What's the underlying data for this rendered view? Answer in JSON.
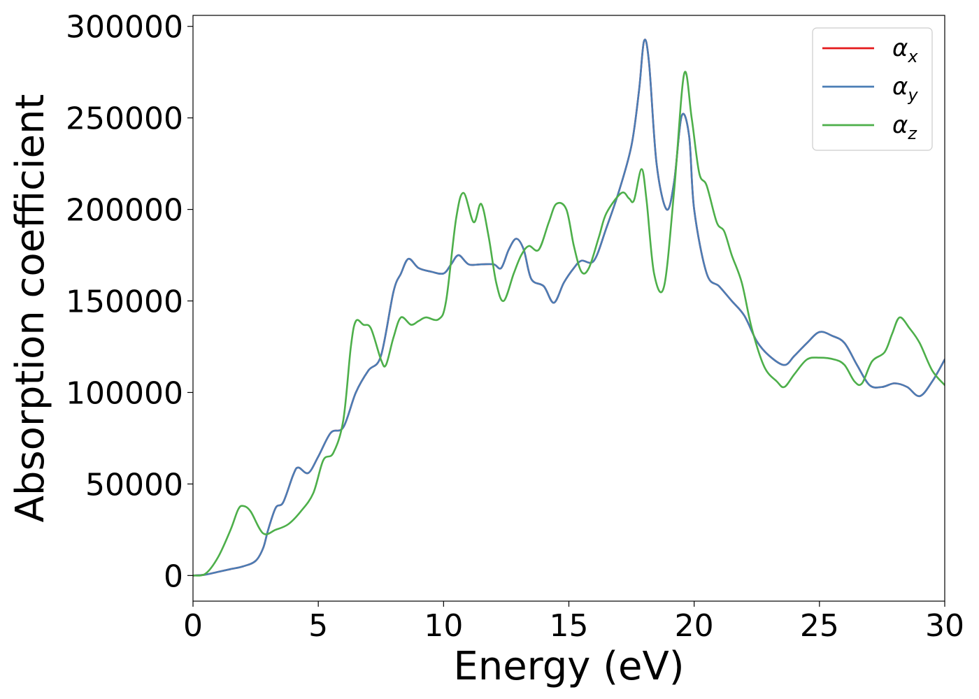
{
  "chart_data": {
    "type": "line",
    "title": "",
    "xlabel": "Energy (eV)",
    "ylabel": "Absorption coefficient",
    "xlim": [
      0,
      30
    ],
    "ylim": [
      -14000,
      306000
    ],
    "grid": false,
    "legend_position": "top-right",
    "xticks": [
      0,
      5,
      10,
      15,
      20,
      25,
      30
    ],
    "xtick_labels": [
      "0",
      "5",
      "10",
      "15",
      "20",
      "25",
      "30"
    ],
    "yticks": [
      0,
      50000,
      100000,
      150000,
      200000,
      250000,
      300000
    ],
    "ytick_labels": [
      "0",
      "50000",
      "100000",
      "150000",
      "200000",
      "250000",
      "300000"
    ],
    "series": [
      {
        "name": "α",
        "subscript": "x",
        "color": "#e41a1c",
        "points": [
          [
            0,
            0
          ],
          [
            0.5,
            500
          ],
          [
            1,
            2000
          ],
          [
            1.5,
            3500
          ],
          [
            2,
            5000
          ],
          [
            2.5,
            8000
          ],
          [
            2.8,
            15000
          ],
          [
            3,
            25000
          ],
          [
            3.3,
            37000
          ],
          [
            3.6,
            40000
          ],
          [
            4,
            55000
          ],
          [
            4.2,
            59000
          ],
          [
            4.6,
            56000
          ],
          [
            5,
            65000
          ],
          [
            5.5,
            78000
          ],
          [
            6,
            81000
          ],
          [
            6.5,
            100000
          ],
          [
            7,
            112000
          ],
          [
            7.5,
            120000
          ],
          [
            8,
            155000
          ],
          [
            8.3,
            165000
          ],
          [
            8.6,
            173000
          ],
          [
            9,
            168000
          ],
          [
            9.5,
            166000
          ],
          [
            10,
            165000
          ],
          [
            10.3,
            170000
          ],
          [
            10.6,
            175000
          ],
          [
            11,
            170000
          ],
          [
            11.5,
            170000
          ],
          [
            12,
            170000
          ],
          [
            12.3,
            168000
          ],
          [
            12.6,
            178000
          ],
          [
            12.9,
            184000
          ],
          [
            13.2,
            178000
          ],
          [
            13.5,
            162000
          ],
          [
            14,
            158000
          ],
          [
            14.4,
            149000
          ],
          [
            14.8,
            160000
          ],
          [
            15.2,
            168000
          ],
          [
            15.5,
            172000
          ],
          [
            16,
            172000
          ],
          [
            16.5,
            190000
          ],
          [
            17,
            210000
          ],
          [
            17.5,
            235000
          ],
          [
            17.8,
            265000
          ],
          [
            18,
            292000
          ],
          [
            18.2,
            280000
          ],
          [
            18.5,
            225000
          ],
          [
            18.9,
            200000
          ],
          [
            19.2,
            215000
          ],
          [
            19.5,
            251000
          ],
          [
            19.8,
            240000
          ],
          [
            20,
            200000
          ],
          [
            20.5,
            165000
          ],
          [
            21,
            158000
          ],
          [
            21.5,
            150000
          ],
          [
            22,
            142000
          ],
          [
            22.5,
            128000
          ],
          [
            23,
            120000
          ],
          [
            23.6,
            115000
          ],
          [
            24,
            120000
          ],
          [
            24.5,
            127000
          ],
          [
            25,
            133000
          ],
          [
            25.5,
            131000
          ],
          [
            26,
            127000
          ],
          [
            26.5,
            115000
          ],
          [
            27,
            104000
          ],
          [
            27.5,
            103000
          ],
          [
            28,
            105000
          ],
          [
            28.5,
            103000
          ],
          [
            29,
            98000
          ],
          [
            29.5,
            106000
          ],
          [
            30,
            118000
          ]
        ]
      },
      {
        "name": "α",
        "subscript": "y",
        "color": "#4a7db5",
        "points": [
          [
            0,
            0
          ],
          [
            0.5,
            500
          ],
          [
            1,
            2000
          ],
          [
            1.5,
            3500
          ],
          [
            2,
            5000
          ],
          [
            2.5,
            8000
          ],
          [
            2.8,
            15000
          ],
          [
            3,
            25000
          ],
          [
            3.3,
            37000
          ],
          [
            3.6,
            40000
          ],
          [
            4,
            55000
          ],
          [
            4.2,
            59000
          ],
          [
            4.6,
            56000
          ],
          [
            5,
            65000
          ],
          [
            5.5,
            78000
          ],
          [
            6,
            81000
          ],
          [
            6.5,
            100000
          ],
          [
            7,
            112000
          ],
          [
            7.5,
            120000
          ],
          [
            8,
            155000
          ],
          [
            8.3,
            165000
          ],
          [
            8.6,
            173000
          ],
          [
            9,
            168000
          ],
          [
            9.5,
            166000
          ],
          [
            10,
            165000
          ],
          [
            10.3,
            170000
          ],
          [
            10.6,
            175000
          ],
          [
            11,
            170000
          ],
          [
            11.5,
            170000
          ],
          [
            12,
            170000
          ],
          [
            12.3,
            168000
          ],
          [
            12.6,
            178000
          ],
          [
            12.9,
            184000
          ],
          [
            13.2,
            178000
          ],
          [
            13.5,
            162000
          ],
          [
            14,
            158000
          ],
          [
            14.4,
            149000
          ],
          [
            14.8,
            160000
          ],
          [
            15.2,
            168000
          ],
          [
            15.5,
            172000
          ],
          [
            16,
            172000
          ],
          [
            16.5,
            190000
          ],
          [
            17,
            210000
          ],
          [
            17.5,
            235000
          ],
          [
            17.8,
            265000
          ],
          [
            18,
            292000
          ],
          [
            18.2,
            280000
          ],
          [
            18.5,
            225000
          ],
          [
            18.9,
            200000
          ],
          [
            19.2,
            215000
          ],
          [
            19.5,
            251000
          ],
          [
            19.8,
            240000
          ],
          [
            20,
            200000
          ],
          [
            20.5,
            165000
          ],
          [
            21,
            158000
          ],
          [
            21.5,
            150000
          ],
          [
            22,
            142000
          ],
          [
            22.5,
            128000
          ],
          [
            23,
            120000
          ],
          [
            23.6,
            115000
          ],
          [
            24,
            120000
          ],
          [
            24.5,
            127000
          ],
          [
            25,
            133000
          ],
          [
            25.5,
            131000
          ],
          [
            26,
            127000
          ],
          [
            26.5,
            115000
          ],
          [
            27,
            104000
          ],
          [
            27.5,
            103000
          ],
          [
            28,
            105000
          ],
          [
            28.5,
            103000
          ],
          [
            29,
            98000
          ],
          [
            29.5,
            106000
          ],
          [
            30,
            118000
          ]
        ]
      },
      {
        "name": "α",
        "subscript": "z",
        "color": "#4daf4a",
        "points": [
          [
            0,
            0
          ],
          [
            0.5,
            1000
          ],
          [
            1,
            10000
          ],
          [
            1.5,
            25000
          ],
          [
            1.8,
            36000
          ],
          [
            2,
            38000
          ],
          [
            2.3,
            35000
          ],
          [
            2.8,
            23000
          ],
          [
            3.3,
            25000
          ],
          [
            3.8,
            28000
          ],
          [
            4.3,
            35000
          ],
          [
            4.8,
            45000
          ],
          [
            5.2,
            63000
          ],
          [
            5.6,
            67000
          ],
          [
            6,
            85000
          ],
          [
            6.3,
            125000
          ],
          [
            6.5,
            139000
          ],
          [
            6.8,
            137000
          ],
          [
            7.1,
            135000
          ],
          [
            7.5,
            118000
          ],
          [
            7.7,
            115000
          ],
          [
            8,
            130000
          ],
          [
            8.3,
            141000
          ],
          [
            8.7,
            137000
          ],
          [
            9,
            139000
          ],
          [
            9.3,
            141000
          ],
          [
            9.8,
            140000
          ],
          [
            10.1,
            150000
          ],
          [
            10.5,
            195000
          ],
          [
            10.8,
            209000
          ],
          [
            11.2,
            193000
          ],
          [
            11.5,
            203000
          ],
          [
            11.8,
            185000
          ],
          [
            12.1,
            160000
          ],
          [
            12.4,
            150000
          ],
          [
            12.8,
            165000
          ],
          [
            13.1,
            175000
          ],
          [
            13.4,
            180000
          ],
          [
            13.8,
            178000
          ],
          [
            14.2,
            193000
          ],
          [
            14.5,
            203000
          ],
          [
            14.9,
            200000
          ],
          [
            15.2,
            180000
          ],
          [
            15.5,
            166000
          ],
          [
            15.8,
            168000
          ],
          [
            16.2,
            185000
          ],
          [
            16.5,
            198000
          ],
          [
            17.1,
            209000
          ],
          [
            17.4,
            206000
          ],
          [
            17.6,
            205000
          ],
          [
            17.9,
            222000
          ],
          [
            18.1,
            205000
          ],
          [
            18.4,
            165000
          ],
          [
            18.8,
            158000
          ],
          [
            19.2,
            210000
          ],
          [
            19.6,
            274000
          ],
          [
            19.9,
            250000
          ],
          [
            20.2,
            220000
          ],
          [
            20.5,
            213000
          ],
          [
            20.9,
            193000
          ],
          [
            21.2,
            188000
          ],
          [
            21.5,
            175000
          ],
          [
            21.9,
            160000
          ],
          [
            22.3,
            135000
          ],
          [
            22.8,
            114000
          ],
          [
            23.3,
            106000
          ],
          [
            23.6,
            103000
          ],
          [
            24,
            110000
          ],
          [
            24.5,
            118000
          ],
          [
            25,
            119000
          ],
          [
            25.6,
            118000
          ],
          [
            26,
            115000
          ],
          [
            26.4,
            106000
          ],
          [
            26.7,
            105000
          ],
          [
            27.1,
            117000
          ],
          [
            27.6,
            122000
          ],
          [
            27.9,
            132000
          ],
          [
            28.2,
            141000
          ],
          [
            28.6,
            135000
          ],
          [
            29,
            127000
          ],
          [
            29.5,
            112000
          ],
          [
            30,
            104000
          ]
        ]
      }
    ]
  }
}
